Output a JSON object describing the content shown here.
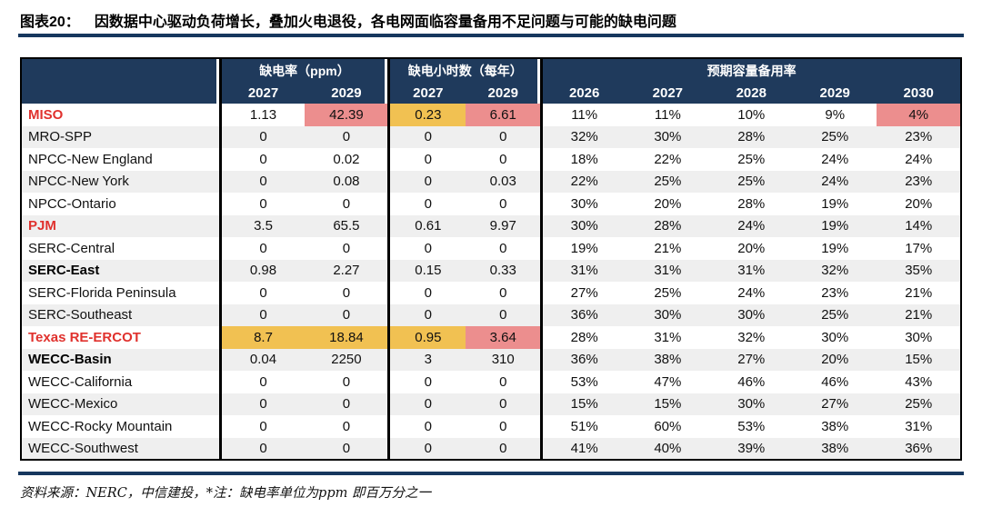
{
  "figure": {
    "label": "图表20：",
    "title": "因数据中心驱动负荷增长，叠加火电退役，各电网面临容量备用不足问题与可能的缺电问题"
  },
  "source_note": "资料来源：NERC，中信建投，*注：缺电率单位为ppm 即百万分之一",
  "colors": {
    "header_navy": "#1f3a5c",
    "divider_navy": "#17375e",
    "highlight_yellow": "#f1c152",
    "highlight_pink": "#ec8e8e",
    "row_stripe_gray": "#efefef",
    "alert_red_text": "#e0312d"
  },
  "chart_data": {
    "type": "table",
    "title": "因数据中心驱动负荷增长，叠加火电退役，各电网面临容量备用不足问题与可能的缺电问题",
    "highlight_codes": {
      "y": "yellow warning",
      "p": "pink severe"
    },
    "column_groups": [
      {
        "label": "缺电率（ppm）",
        "years": [
          "2027",
          "2029"
        ]
      },
      {
        "label": "缺电小时数（每年）",
        "years": [
          "2027",
          "2029"
        ]
      },
      {
        "label": "预期容量备用率",
        "years": [
          "2026",
          "2027",
          "2028",
          "2029",
          "2030"
        ]
      }
    ],
    "rows": [
      {
        "name": "MISO",
        "style": "red",
        "values": [
          "1.13",
          "42.39",
          "0.23",
          "6.61",
          "11%",
          "11%",
          "10%",
          "9%",
          "4%"
        ],
        "highlights": [
          "",
          "p",
          "y",
          "p",
          "",
          "",
          "",
          "",
          "p"
        ]
      },
      {
        "name": "MRO-SPP",
        "style": "",
        "values": [
          "0",
          "0",
          "0",
          "0",
          "32%",
          "30%",
          "28%",
          "25%",
          "23%"
        ],
        "highlights": [
          "",
          "",
          "",
          "",
          "",
          "",
          "",
          "",
          ""
        ]
      },
      {
        "name": "NPCC-New England",
        "style": "",
        "values": [
          "0",
          "0.02",
          "0",
          "0",
          "18%",
          "22%",
          "25%",
          "24%",
          "24%"
        ],
        "highlights": [
          "",
          "",
          "",
          "",
          "",
          "",
          "",
          "",
          ""
        ]
      },
      {
        "name": "NPCC-New York",
        "style": "",
        "values": [
          "0",
          "0.08",
          "0",
          "0.03",
          "22%",
          "25%",
          "25%",
          "24%",
          "23%"
        ],
        "highlights": [
          "",
          "",
          "",
          "",
          "",
          "",
          "",
          "",
          ""
        ]
      },
      {
        "name": "NPCC-Ontario",
        "style": "",
        "values": [
          "0",
          "0",
          "0",
          "0",
          "30%",
          "20%",
          "28%",
          "19%",
          "20%"
        ],
        "highlights": [
          "",
          "",
          "",
          "",
          "",
          "",
          "",
          "",
          ""
        ]
      },
      {
        "name": "PJM",
        "style": "red",
        "values": [
          "3.5",
          "65.5",
          "0.61",
          "9.97",
          "30%",
          "28%",
          "24%",
          "19%",
          "14%"
        ],
        "highlights": [
          "y",
          "p",
          "y",
          "p",
          "",
          "",
          "",
          "p",
          "p"
        ]
      },
      {
        "name": "SERC-Central",
        "style": "",
        "values": [
          "0",
          "0",
          "0",
          "0",
          "19%",
          "21%",
          "20%",
          "19%",
          "17%"
        ],
        "highlights": [
          "",
          "",
          "",
          "",
          "",
          "",
          "",
          "",
          ""
        ]
      },
      {
        "name": "SERC-East",
        "style": "bold",
        "values": [
          "0.98",
          "2.27",
          "0.15",
          "0.33",
          "31%",
          "31%",
          "31%",
          "32%",
          "35%"
        ],
        "highlights": [
          "",
          "y",
          "y",
          "y",
          "",
          "",
          "",
          "",
          ""
        ]
      },
      {
        "name": "SERC-Florida Peninsula",
        "style": "",
        "values": [
          "0",
          "0",
          "0",
          "0",
          "27%",
          "25%",
          "24%",
          "23%",
          "21%"
        ],
        "highlights": [
          "",
          "",
          "",
          "",
          "",
          "",
          "",
          "",
          ""
        ]
      },
      {
        "name": "SERC-Southeast",
        "style": "",
        "values": [
          "0",
          "0",
          "0",
          "0",
          "36%",
          "30%",
          "30%",
          "25%",
          "21%"
        ],
        "highlights": [
          "",
          "",
          "",
          "",
          "",
          "",
          "",
          "",
          ""
        ]
      },
      {
        "name": "Texas RE-ERCOT",
        "style": "red",
        "values": [
          "8.7",
          "18.84",
          "0.95",
          "3.64",
          "28%",
          "31%",
          "32%",
          "30%",
          "30%"
        ],
        "highlights": [
          "y",
          "y",
          "y",
          "p",
          "",
          "",
          "",
          "",
          ""
        ]
      },
      {
        "name": "WECC-Basin",
        "style": "bold",
        "values": [
          "0.04",
          "2250",
          "3",
          "310",
          "36%",
          "38%",
          "27%",
          "20%",
          "15%"
        ],
        "highlights": [
          "",
          "p",
          "p",
          "p",
          "",
          "",
          "",
          "",
          ""
        ]
      },
      {
        "name": "WECC-California",
        "style": "",
        "values": [
          "0",
          "0",
          "0",
          "0",
          "53%",
          "47%",
          "46%",
          "46%",
          "43%"
        ],
        "highlights": [
          "",
          "",
          "",
          "",
          "",
          "",
          "",
          "",
          ""
        ]
      },
      {
        "name": "WECC-Mexico",
        "style": "",
        "values": [
          "0",
          "0",
          "0",
          "0",
          "15%",
          "15%",
          "30%",
          "27%",
          "25%"
        ],
        "highlights": [
          "",
          "",
          "",
          "",
          "",
          "",
          "",
          "",
          ""
        ]
      },
      {
        "name": "WECC-Rocky Mountain",
        "style": "",
        "values": [
          "0",
          "0",
          "0",
          "0",
          "51%",
          "60%",
          "53%",
          "38%",
          "31%"
        ],
        "highlights": [
          "",
          "",
          "",
          "",
          "",
          "",
          "",
          "",
          ""
        ]
      },
      {
        "name": "WECC-Southwest",
        "style": "",
        "values": [
          "0",
          "0",
          "0",
          "0",
          "41%",
          "40%",
          "39%",
          "38%",
          "36%"
        ],
        "highlights": [
          "",
          "",
          "",
          "",
          "",
          "",
          "",
          "",
          ""
        ]
      }
    ]
  }
}
